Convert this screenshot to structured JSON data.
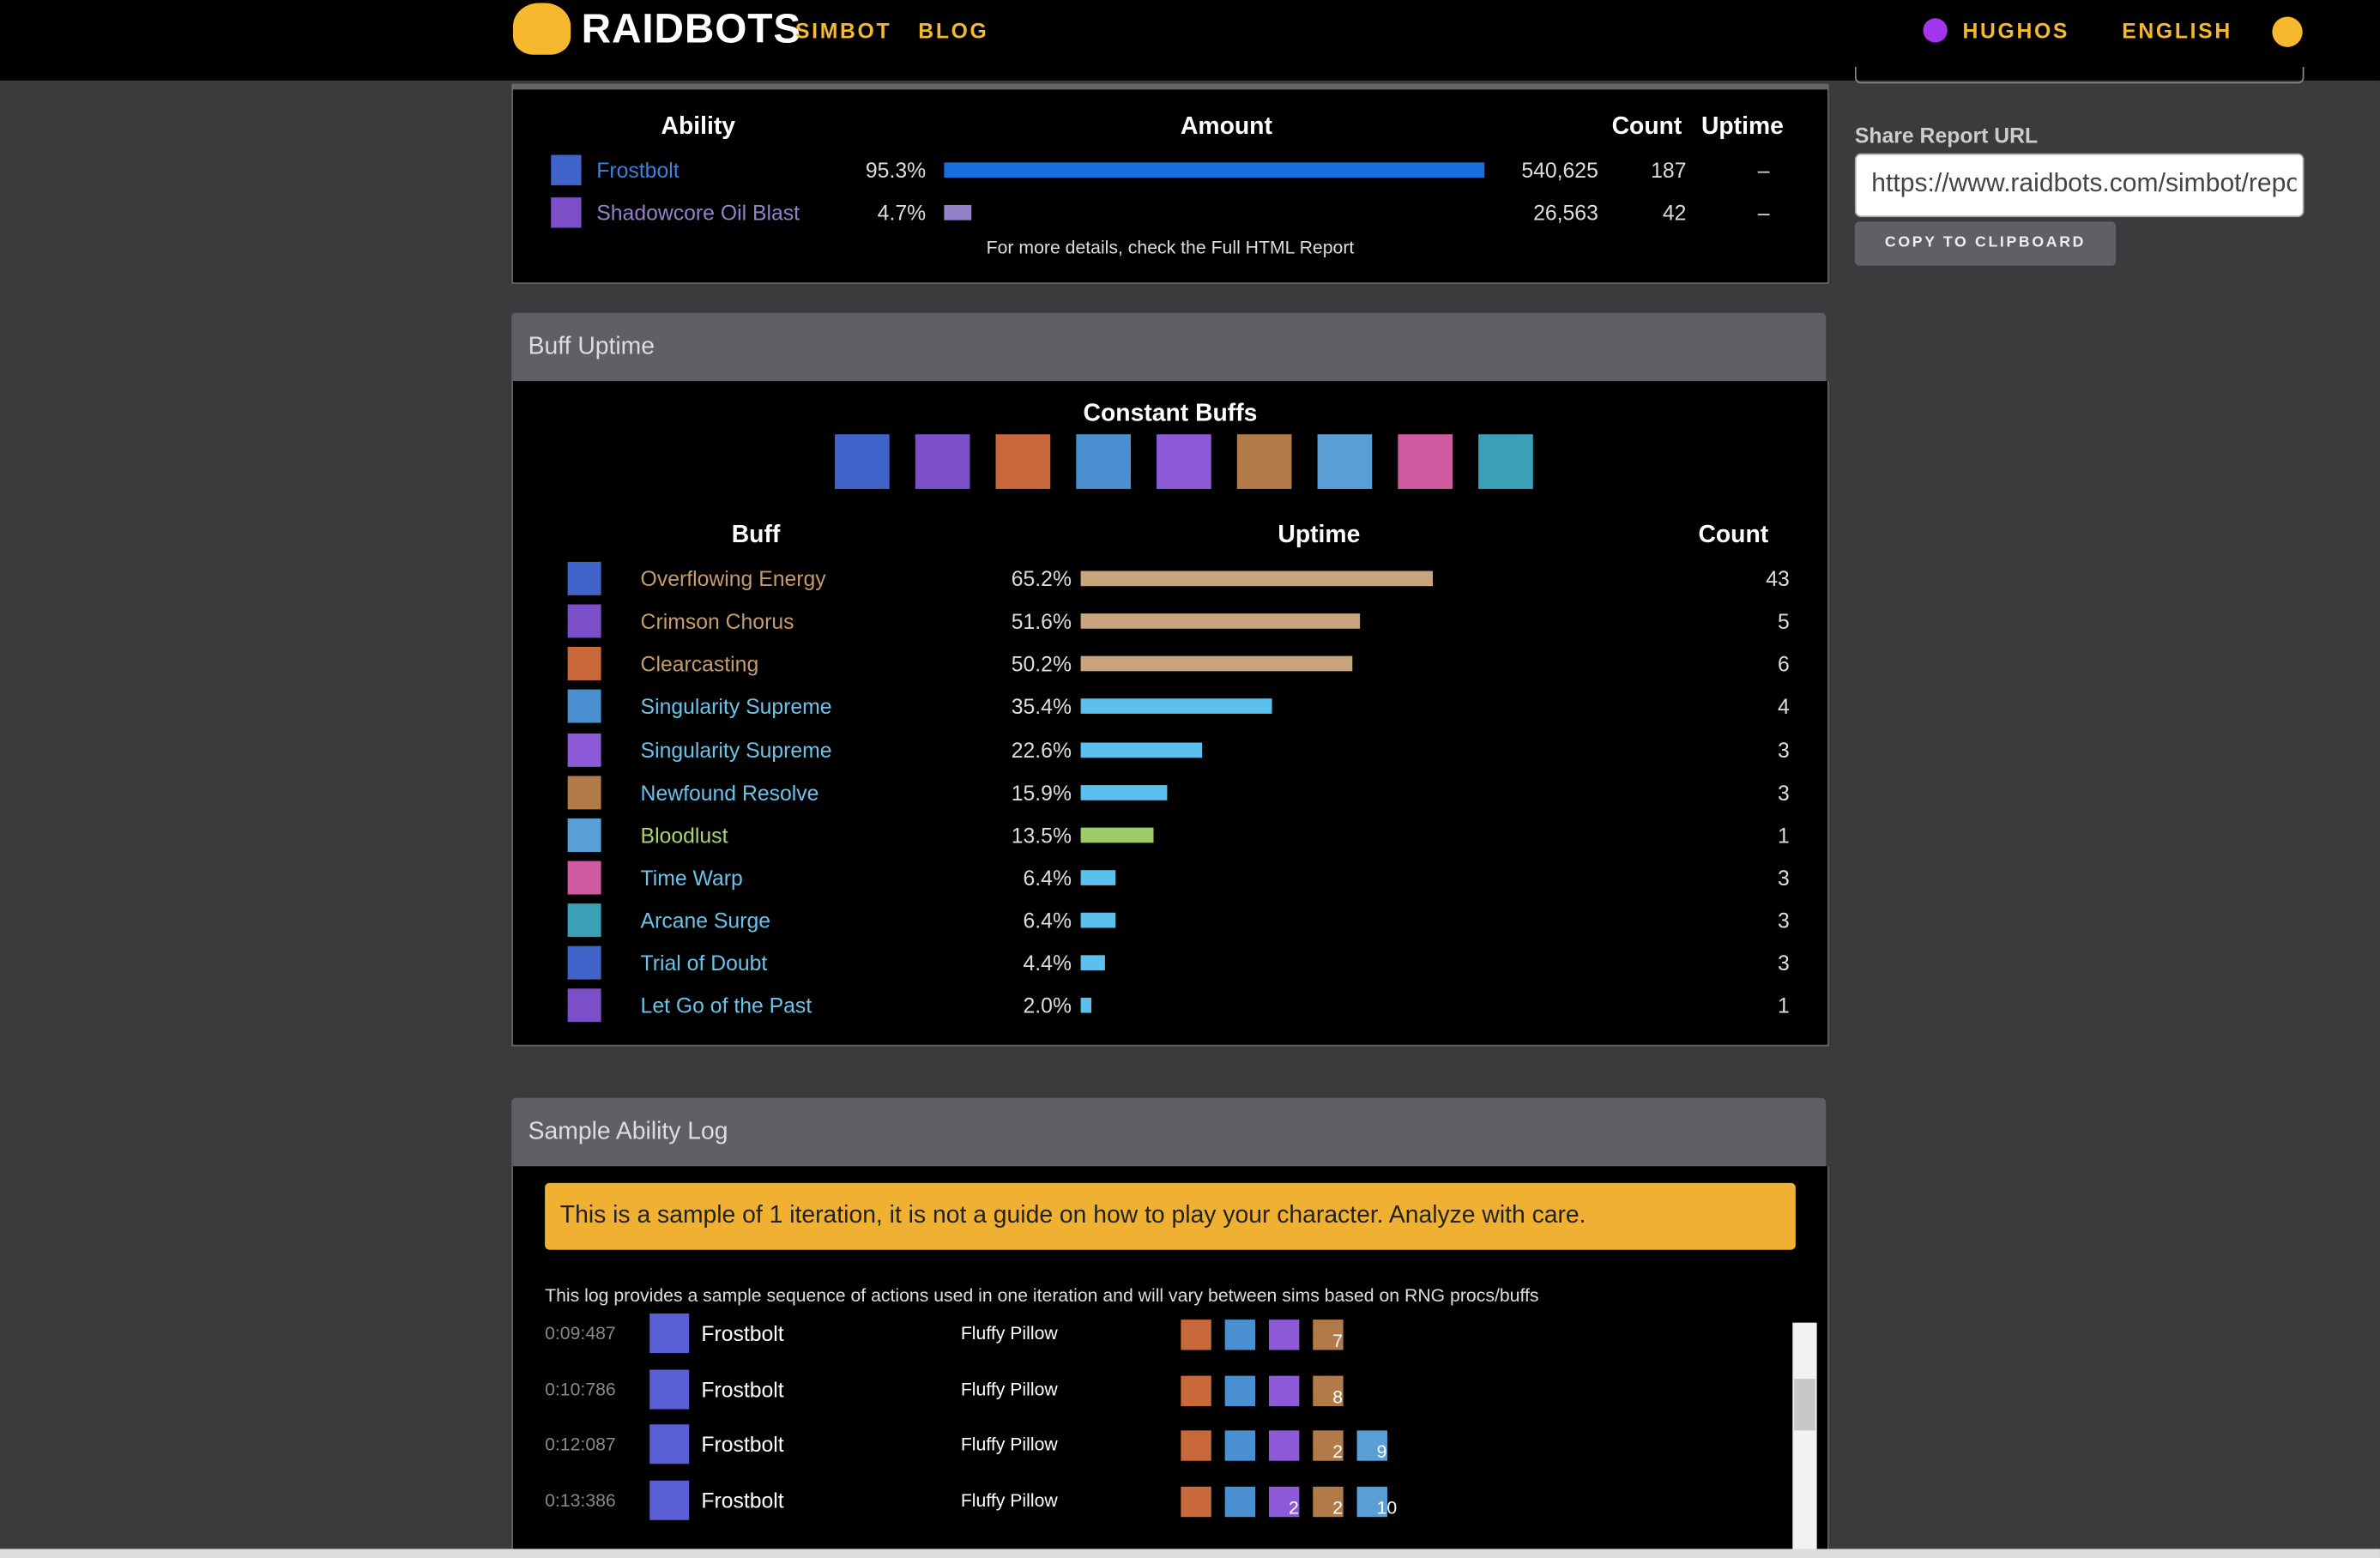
{
  "nav": {
    "logo": "RAIDBOTS",
    "links": [
      "SIMBOT",
      "BLOG"
    ],
    "user": "HUGHOS",
    "language": "ENGLISH"
  },
  "share": {
    "label": "Share Report URL",
    "url": "https://www.raidbots.com/simbot/repo",
    "button": "COPY TO CLIPBOARD"
  },
  "abilities": {
    "headers": [
      "Ability",
      "Amount",
      "Count",
      "Uptime"
    ],
    "rows": [
      {
        "name": "Frostbolt",
        "percent": 95.3,
        "percent_label": "95.3%",
        "amount": "540,625",
        "count": 187,
        "uptime": "–",
        "color": "#3d7fe0",
        "bar_color": "#1a6fe0"
      },
      {
        "name": "Shadowcore Oil Blast",
        "percent": 4.7,
        "percent_label": "4.7%",
        "amount": "26,563",
        "count": 42,
        "uptime": "–",
        "color": "#9482c9",
        "bar_color": "#9482c9"
      }
    ],
    "note": "For more details, check the Full HTML Report"
  },
  "buff_uptime": {
    "title": "Buff Uptime",
    "constant_title": "Constant Buffs",
    "headers": [
      "Buff",
      "Uptime",
      "Count"
    ],
    "rows": [
      {
        "name": "Overflowing Energy",
        "uptime": 65.2,
        "uptime_label": "65.2%",
        "count": 43,
        "color": "#c69b6d",
        "bar_color": "#c9a57e"
      },
      {
        "name": "Crimson Chorus",
        "uptime": 51.6,
        "uptime_label": "51.6%",
        "count": 5,
        "color": "#c69b6d",
        "bar_color": "#c9a57e"
      },
      {
        "name": "Clearcasting",
        "uptime": 50.2,
        "uptime_label": "50.2%",
        "count": 6,
        "color": "#c69b6d",
        "bar_color": "#c9a57e"
      },
      {
        "name": "Singularity Supreme",
        "uptime": 35.4,
        "uptime_label": "35.4%",
        "count": 4,
        "color": "#6cc3ea",
        "bar_color": "#5bc0eb"
      },
      {
        "name": "Singularity Supreme",
        "uptime": 22.6,
        "uptime_label": "22.6%",
        "count": 3,
        "color": "#6cc3ea",
        "bar_color": "#5bc0eb"
      },
      {
        "name": "Newfound Resolve",
        "uptime": 15.9,
        "uptime_label": "15.9%",
        "count": 3,
        "color": "#6cc3ea",
        "bar_color": "#5bc0eb"
      },
      {
        "name": "Bloodlust",
        "uptime": 13.5,
        "uptime_label": "13.5%",
        "count": 1,
        "color": "#abd473",
        "bar_color": "#9ccc65"
      },
      {
        "name": "Time Warp",
        "uptime": 6.4,
        "uptime_label": "6.4%",
        "count": 3,
        "color": "#6cc3ea",
        "bar_color": "#5bc0eb"
      },
      {
        "name": "Arcane Surge",
        "uptime": 6.4,
        "uptime_label": "6.4%",
        "count": 3,
        "color": "#6cc3ea",
        "bar_color": "#5bc0eb"
      },
      {
        "name": "Trial of Doubt",
        "uptime": 4.4,
        "uptime_label": "4.4%",
        "count": 3,
        "color": "#6cc3ea",
        "bar_color": "#5bc0eb"
      },
      {
        "name": "Let Go of the Past",
        "uptime": 2.0,
        "uptime_label": "2.0%",
        "count": 1,
        "color": "#6cc3ea",
        "bar_color": "#5bc0eb"
      }
    ]
  },
  "sample_log": {
    "title": "Sample Ability Log",
    "warning": "This is a sample of 1 iteration, it is not a guide on how to play your character. Analyze with care.",
    "description": "This log provides a sample sequence of actions used in one iteration and will vary between sims based on RNG procs/buffs",
    "rows": [
      {
        "time": "0:09:487",
        "ability": "Frostbolt",
        "target": "Fluffy Pillow",
        "buffs": [
          null,
          null,
          null,
          7
        ]
      },
      {
        "time": "0:10:786",
        "ability": "Frostbolt",
        "target": "Fluffy Pillow",
        "buffs": [
          null,
          null,
          null,
          8
        ]
      },
      {
        "time": "0:12:087",
        "ability": "Frostbolt",
        "target": "Fluffy Pillow",
        "buffs": [
          null,
          null,
          null,
          2,
          9
        ]
      },
      {
        "time": "0:13:386",
        "ability": "Frostbolt",
        "target": "Fluffy Pillow",
        "buffs": [
          null,
          null,
          2,
          2,
          10
        ]
      }
    ]
  }
}
